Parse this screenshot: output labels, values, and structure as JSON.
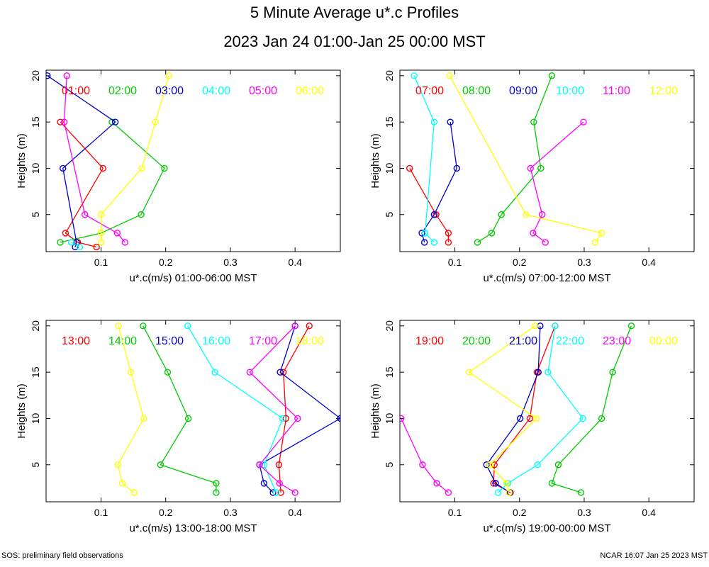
{
  "title": "5 Minute Average u*.c Profiles",
  "subtitle": "2023 Jan 24 01:00-Jan 25 00:00 MST",
  "footer_left": "SOS: preliminary field observations",
  "footer_right": "NCAR 16:07 Jan 25 2023 MST",
  "colors": [
    "#ff0000",
    "#00cc00",
    "#0000cc",
    "#00ffff",
    "#ff00ff",
    "#ffff00"
  ],
  "chart_data": [
    {
      "type": "line",
      "xlabel": "u*.c(m/s) 01:00-06:00 MST",
      "ylabel": "Heights (m)",
      "xlim": [
        0.015,
        0.47
      ],
      "ylim": [
        1,
        20.6
      ],
      "xticks": [
        0.1,
        0.2,
        0.3,
        0.4
      ],
      "yticks": [
        5,
        10,
        15,
        20
      ],
      "series": [
        {
          "name": "01:00",
          "points": [
            [
              0.093,
              1.5
            ],
            [
              0.064,
              2
            ],
            [
              0.045,
              3
            ],
            [
              0.103,
              10
            ],
            [
              0.037,
              15
            ]
          ]
        },
        {
          "name": "02:00",
          "points": [
            [
              0.037,
              2
            ],
            [
              0.1,
              3
            ],
            [
              0.162,
              5
            ],
            [
              0.198,
              10
            ],
            [
              0.117,
              15
            ]
          ]
        },
        {
          "name": "03:00",
          "points": [
            [
              0.06,
              1.5
            ],
            [
              0.062,
              2
            ],
            [
              0.041,
              10
            ],
            [
              0.122,
              15
            ],
            [
              0.017,
              20
            ]
          ]
        },
        {
          "name": "04:00",
          "points": [
            [
              0.054,
              2
            ],
            [
              0.067,
              1.5
            ]
          ]
        },
        {
          "name": "05:00",
          "points": [
            [
              0.137,
              2
            ],
            [
              0.125,
              3
            ],
            [
              0.075,
              5
            ],
            [
              0.043,
              15
            ],
            [
              0.047,
              20
            ]
          ]
        },
        {
          "name": "06:00",
          "points": [
            [
              0.1,
              2
            ],
            [
              0.1,
              3
            ],
            [
              0.1,
              5
            ],
            [
              0.163,
              10
            ],
            [
              0.184,
              15
            ],
            [
              0.205,
              20
            ]
          ]
        }
      ]
    },
    {
      "type": "line",
      "xlabel": "u*.c(m/s) 07:00-12:00 MST",
      "ylabel": "Heights (m)",
      "xlim": [
        0.015,
        0.47
      ],
      "ylim": [
        1,
        20.6
      ],
      "xticks": [
        0.1,
        0.2,
        0.3,
        0.4
      ],
      "yticks": [
        5,
        10,
        15,
        20
      ],
      "series": [
        {
          "name": "07:00",
          "points": [
            [
              0.09,
              2
            ],
            [
              0.09,
              3
            ],
            [
              0.071,
              5
            ],
            [
              0.03,
              10
            ]
          ]
        },
        {
          "name": "08:00",
          "points": [
            [
              0.135,
              2
            ],
            [
              0.157,
              3
            ],
            [
              0.172,
              5
            ],
            [
              0.233,
              10
            ],
            [
              0.222,
              15
            ],
            [
              0.25,
              20
            ]
          ]
        },
        {
          "name": "09:00",
          "points": [
            [
              0.053,
              2
            ],
            [
              0.049,
              3
            ],
            [
              0.068,
              5
            ],
            [
              0.103,
              10
            ],
            [
              0.093,
              15
            ]
          ]
        },
        {
          "name": "10:00",
          "points": [
            [
              0.068,
              2
            ],
            [
              0.054,
              3
            ],
            [
              0.068,
              15
            ],
            [
              0.037,
              20
            ]
          ]
        },
        {
          "name": "11:00",
          "points": [
            [
              0.24,
              2
            ],
            [
              0.221,
              3
            ],
            [
              0.235,
              5
            ],
            [
              0.217,
              10
            ],
            [
              0.299,
              15
            ]
          ]
        },
        {
          "name": "12:00",
          "points": [
            [
              0.317,
              2
            ],
            [
              0.327,
              3
            ],
            [
              0.21,
              5
            ],
            [
              0.092,
              20
            ]
          ]
        }
      ]
    },
    {
      "type": "line",
      "xlabel": "u*.c(m/s) 13:00-18:00 MST",
      "ylabel": "Heights (m)",
      "xlim": [
        0.015,
        0.47
      ],
      "ylim": [
        1,
        20.6
      ],
      "xticks": [
        0.1,
        0.2,
        0.3,
        0.4
      ],
      "yticks": [
        5,
        10,
        15,
        20
      ],
      "series": [
        {
          "name": "13:00",
          "points": [
            [
              0.378,
              2
            ],
            [
              0.375,
              5
            ],
            [
              0.386,
              10
            ],
            [
              0.382,
              15
            ],
            [
              0.422,
              20
            ]
          ]
        },
        {
          "name": "14:00",
          "points": [
            [
              0.278,
              2
            ],
            [
              0.278,
              3
            ],
            [
              0.192,
              5
            ],
            [
              0.235,
              10
            ],
            [
              0.203,
              15
            ],
            [
              0.165,
              20
            ]
          ]
        },
        {
          "name": "15:00",
          "points": [
            [
              0.366,
              2
            ],
            [
              0.352,
              3
            ],
            [
              0.345,
              5
            ],
            [
              0.47,
              10
            ],
            [
              0.377,
              15
            ],
            [
              0.4,
              20
            ]
          ]
        },
        {
          "name": "16:00",
          "points": [
            [
              0.371,
              2
            ],
            [
              0.352,
              5
            ],
            [
              0.381,
              10
            ],
            [
              0.276,
              15
            ],
            [
              0.234,
              20
            ]
          ]
        },
        {
          "name": "17:00",
          "points": [
            [
              0.4,
              2
            ],
            [
              0.376,
              3
            ],
            [
              0.345,
              5
            ],
            [
              0.404,
              10
            ],
            [
              0.33,
              15
            ],
            [
              0.4,
              20
            ]
          ]
        },
        {
          "name": "18:00",
          "points": [
            [
              0.151,
              2
            ],
            [
              0.133,
              3
            ],
            [
              0.126,
              5
            ],
            [
              0.166,
              10
            ],
            [
              0.146,
              15
            ],
            [
              0.127,
              20
            ]
          ]
        }
      ]
    },
    {
      "type": "line",
      "xlabel": "u*.c(m/s) 19:00-00:00 MST",
      "ylabel": "Heights (m)",
      "xlim": [
        0.015,
        0.47
      ],
      "ylim": [
        1,
        20.6
      ],
      "xticks": [
        0.1,
        0.2,
        0.3,
        0.4
      ],
      "yticks": [
        5,
        10,
        15,
        20
      ],
      "series": [
        {
          "name": "19:00",
          "points": [
            [
              0.186,
              2
            ],
            [
              0.16,
              3
            ],
            [
              0.161,
              5
            ],
            [
              0.216,
              10
            ],
            [
              0.227,
              15
            ],
            [
              0.255,
              20
            ]
          ]
        },
        {
          "name": "20:00",
          "points": [
            [
              0.295,
              2
            ],
            [
              0.25,
              3
            ],
            [
              0.26,
              5
            ],
            [
              0.327,
              10
            ],
            [
              0.344,
              15
            ],
            [
              0.373,
              20
            ]
          ]
        },
        {
          "name": "21:00",
          "points": [
            [
              0.185,
              2
            ],
            [
              0.163,
              3
            ],
            [
              0.149,
              5
            ],
            [
              0.201,
              10
            ],
            [
              0.229,
              15
            ],
            [
              0.232,
              20
            ]
          ]
        },
        {
          "name": "22:00",
          "points": [
            [
              0.167,
              2
            ],
            [
              0.182,
              3
            ],
            [
              0.228,
              5
            ],
            [
              0.298,
              10
            ],
            [
              0.244,
              15
            ],
            [
              0.255,
              20
            ]
          ]
        },
        {
          "name": "23:00",
          "points": [
            [
              0.09,
              2
            ],
            [
              0.072,
              3
            ],
            [
              0.05,
              5
            ],
            [
              0.017,
              10
            ]
          ]
        },
        {
          "name": "00:00",
          "points": [
            [
              0.184,
              2
            ],
            [
              0.18,
              3
            ],
            [
              0.154,
              5
            ],
            [
              0.226,
              10
            ],
            [
              0.122,
              15
            ],
            [
              0.224,
              20
            ]
          ]
        }
      ]
    }
  ]
}
